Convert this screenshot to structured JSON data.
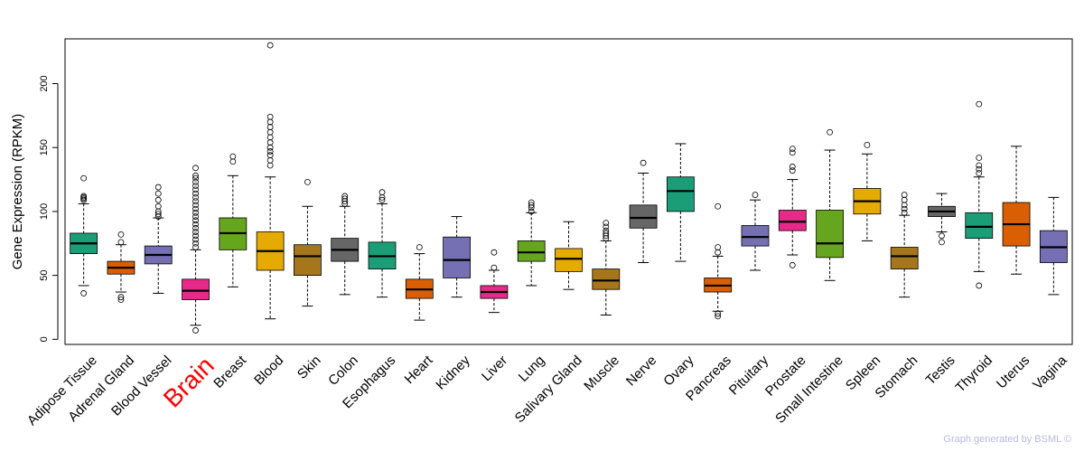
{
  "chart_data": {
    "type": "box",
    "title": "",
    "xlabel": "",
    "ylabel": "Gene Expression (RPKM)",
    "ylim": [
      -4,
      235
    ],
    "yticks": [
      0,
      50,
      100,
      150,
      200
    ],
    "highlight_category": "Brain",
    "highlight_color": "#ff0000",
    "categories": [
      "Adipose Tissue",
      "Adrenal Gland",
      "Blood Vessel",
      "Brain",
      "Breast",
      "Blood",
      "Skin",
      "Colon",
      "Esophagus",
      "Heart",
      "Kidney",
      "Liver",
      "Lung",
      "Salivary Gland",
      "Muscle",
      "Nerve",
      "Ovary",
      "Pancreas",
      "Pituitary",
      "Prostate",
      "Small Intestine",
      "Spleen",
      "Stomach",
      "Testis",
      "Thyroid",
      "Uterus",
      "Vagina"
    ],
    "colors": [
      "#1b9e77",
      "#d95f02",
      "#7570b3",
      "#e7298a",
      "#66a61e",
      "#e6ab02",
      "#a6761d",
      "#666666",
      "#1b9e77",
      "#d95f02",
      "#7570b3",
      "#e7298a",
      "#66a61e",
      "#e6ab02",
      "#a6761d",
      "#666666",
      "#1b9e77",
      "#d95f02",
      "#7570b3",
      "#e7298a",
      "#66a61e",
      "#e6ab02",
      "#a6761d",
      "#666666",
      "#1b9e77",
      "#d95f02",
      "#7570b3"
    ],
    "boxes": [
      {
        "whisker_low": 42,
        "q1": 67,
        "median": 75,
        "q3": 83,
        "whisker_high": 106,
        "outliers": [
          36,
          109,
          110,
          111,
          112,
          126
        ]
      },
      {
        "whisker_low": 37,
        "q1": 51,
        "median": 56,
        "q3": 61,
        "whisker_high": 74,
        "outliers": [
          31,
          33,
          76,
          82
        ]
      },
      {
        "whisker_low": 36,
        "q1": 59,
        "median": 66,
        "q3": 73,
        "whisker_high": 95,
        "outliers": [
          96,
          98,
          100,
          104,
          109,
          114,
          119
        ]
      },
      {
        "whisker_low": 11,
        "q1": 31,
        "median": 38,
        "q3": 47,
        "whisker_high": 70,
        "outliers": [
          7,
          72,
          75,
          78,
          81,
          84,
          87,
          90,
          93,
          96,
          99,
          102,
          105,
          108,
          111,
          114,
          117,
          120,
          123,
          126,
          128,
          134
        ]
      },
      {
        "whisker_low": 41,
        "q1": 70,
        "median": 83,
        "q3": 95,
        "whisker_high": 128,
        "outliers": [
          139,
          143
        ]
      },
      {
        "whisker_low": 16,
        "q1": 54,
        "median": 69,
        "q3": 84,
        "whisker_high": 127,
        "outliers": [
          136,
          140,
          144,
          147,
          150,
          154,
          158,
          162,
          166,
          170,
          174,
          230
        ]
      },
      {
        "whisker_low": 26,
        "q1": 50,
        "median": 65,
        "q3": 74,
        "whisker_high": 104,
        "outliers": [
          123
        ]
      },
      {
        "whisker_low": 35,
        "q1": 61,
        "median": 70,
        "q3": 79,
        "whisker_high": 104,
        "outliers": [
          106,
          108,
          110,
          112
        ]
      },
      {
        "whisker_low": 33,
        "q1": 55,
        "median": 65,
        "q3": 76,
        "whisker_high": 106,
        "outliers": [
          109,
          111,
          115
        ]
      },
      {
        "whisker_low": 15,
        "q1": 32,
        "median": 39,
        "q3": 47,
        "whisker_high": 67,
        "outliers": [
          72
        ]
      },
      {
        "whisker_low": 33,
        "q1": 48,
        "median": 62,
        "q3": 80,
        "whisker_high": 96,
        "outliers": []
      },
      {
        "whisker_low": 21,
        "q1": 32,
        "median": 37,
        "q3": 42,
        "whisker_high": 54,
        "outliers": [
          56,
          68
        ]
      },
      {
        "whisker_low": 42,
        "q1": 61,
        "median": 68,
        "q3": 77,
        "whisker_high": 99,
        "outliers": [
          100,
          103,
          105,
          107
        ]
      },
      {
        "whisker_low": 39,
        "q1": 53,
        "median": 63,
        "q3": 71,
        "whisker_high": 92,
        "outliers": []
      },
      {
        "whisker_low": 19,
        "q1": 39,
        "median": 46,
        "q3": 55,
        "whisker_high": 77,
        "outliers": [
          79,
          81,
          83,
          85,
          88,
          91
        ]
      },
      {
        "whisker_low": 60,
        "q1": 87,
        "median": 95,
        "q3": 105,
        "whisker_high": 130,
        "outliers": [
          138
        ]
      },
      {
        "whisker_low": 61,
        "q1": 100,
        "median": 116,
        "q3": 127,
        "whisker_high": 153,
        "outliers": []
      },
      {
        "whisker_low": 22,
        "q1": 37,
        "median": 42,
        "q3": 48,
        "whisker_high": 65,
        "outliers": [
          18,
          20,
          68,
          72,
          104
        ]
      },
      {
        "whisker_low": 54,
        "q1": 73,
        "median": 80,
        "q3": 89,
        "whisker_high": 109,
        "outliers": [
          113
        ]
      },
      {
        "whisker_low": 66,
        "q1": 85,
        "median": 92,
        "q3": 101,
        "whisker_high": 125,
        "outliers": [
          58,
          132,
          135,
          146,
          149
        ]
      },
      {
        "whisker_low": 46,
        "q1": 64,
        "median": 75,
        "q3": 101,
        "whisker_high": 148,
        "outliers": [
          162
        ]
      },
      {
        "whisker_low": 77,
        "q1": 98,
        "median": 108,
        "q3": 118,
        "whisker_high": 145,
        "outliers": [
          152
        ]
      },
      {
        "whisker_low": 33,
        "q1": 55,
        "median": 65,
        "q3": 72,
        "whisker_high": 97,
        "outliers": [
          99,
          102,
          105,
          109,
          113
        ]
      },
      {
        "whisker_low": 84,
        "q1": 96,
        "median": 100,
        "q3": 104,
        "whisker_high": 114,
        "outliers": [
          76,
          81
        ]
      },
      {
        "whisker_low": 53,
        "q1": 79,
        "median": 88,
        "q3": 99,
        "whisker_high": 127,
        "outliers": [
          42,
          130,
          133,
          136,
          142,
          184
        ]
      },
      {
        "whisker_low": 51,
        "q1": 73,
        "median": 90,
        "q3": 107,
        "whisker_high": 151,
        "outliers": []
      },
      {
        "whisker_low": 35,
        "q1": 60,
        "median": 72,
        "q3": 85,
        "whisker_high": 111,
        "outliers": []
      }
    ],
    "watermark": "Graph generated by BSML ©"
  }
}
